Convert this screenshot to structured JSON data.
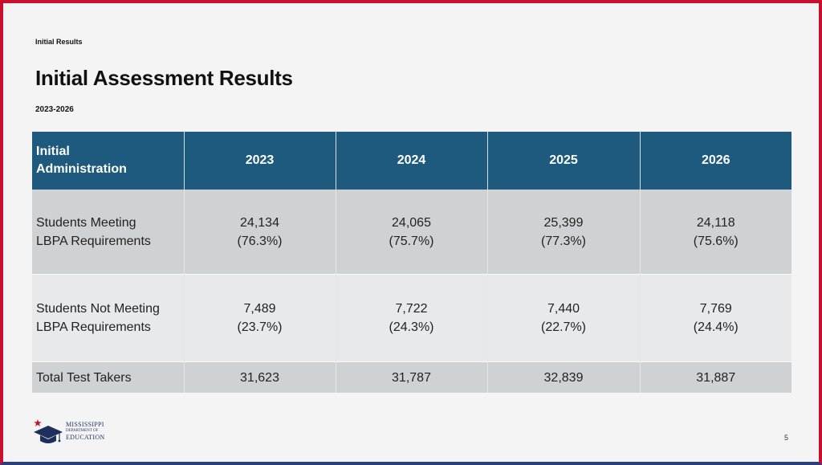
{
  "slide": {
    "breadcrumb": "Initial Results",
    "title": "Initial Assessment Results",
    "subtitle": "2023-2026",
    "page_number": "5"
  },
  "table": {
    "header": {
      "row_label_line1": "Initial",
      "row_label_line2": "Administration",
      "columns": [
        "2023",
        "2024",
        "2025",
        "2026"
      ]
    },
    "rows": [
      {
        "label_line1": "Students Meeting",
        "label_line2": "LBPA Requirements",
        "cells": [
          {
            "count": "24,134",
            "pct": "(76.3%)"
          },
          {
            "count": "24,065",
            "pct": "(75.7%)"
          },
          {
            "count": "25,399",
            "pct": "(77.3%)"
          },
          {
            "count": "24,118",
            "pct": "(75.6%)"
          }
        ]
      },
      {
        "label_line1": "Students Not Meeting",
        "label_line2": "LBPA Requirements",
        "cells": [
          {
            "count": "7,489",
            "pct": "(23.7%)"
          },
          {
            "count": "7,722",
            "pct": "(24.3%)"
          },
          {
            "count": "7,440",
            "pct": "(22.7%)"
          },
          {
            "count": "7,769",
            "pct": "(24.4%)"
          }
        ]
      },
      {
        "label_line1": "Total Test Takers",
        "cells": [
          {
            "count": "31,623"
          },
          {
            "count": "31,787"
          },
          {
            "count": "32,839"
          },
          {
            "count": "31,887"
          }
        ]
      }
    ]
  },
  "logo": {
    "line1": "MISSISSIPPI",
    "line2": "DEPARTMENT OF",
    "line3": "EDUCATION",
    "icon": "graduation-cap-icon",
    "star_color": "#c8102e",
    "cap_color": "#1e2f5e"
  },
  "colors": {
    "header_bg": "#1e5a7e",
    "row_dark": "#cfd2d5",
    "row_light": "#e8e9ea",
    "frame_red": "#c8102e"
  }
}
